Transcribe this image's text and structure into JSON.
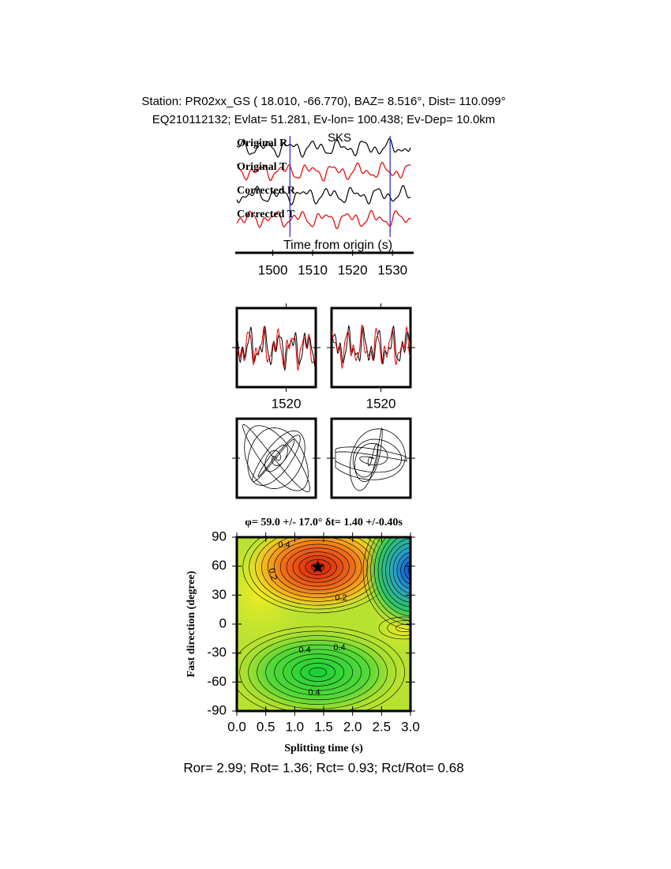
{
  "header": {
    "station_line": "Station: PR02xx_GS (  18.010,  -66.770), BAZ=    8.516°, Dist=  110.099°",
    "event_line": "EQ210112132; Evlat=  51.281, Ev-lon= 100.438; Ev-Dep= 10.0km"
  },
  "traces": {
    "labels": [
      "Original R",
      "Original T",
      "Corrected R",
      "Corrected T"
    ],
    "phase": "SKS",
    "xlabel": "Time from origin (s)",
    "xlim": [
      1490.6,
      1535.3
    ],
    "xticks": [
      1500,
      1510,
      1520,
      1530
    ],
    "window": [
      1504.3,
      1529.4
    ],
    "colors": {
      "radial": "#000000",
      "transverse": "#e00000",
      "window": "#2020c0",
      "phase": "#e00000"
    }
  },
  "window_panels": {
    "xticks": [
      1520
    ]
  },
  "grid_search": {
    "title": "φ= 59.0 +/- 17.0° δt= 1.40 +/-0.40s",
    "xlabel": "Splitting time (s)",
    "ylabel": "Fast direction (degree)",
    "xlim": [
      0,
      3
    ],
    "ylim": [
      -90,
      90
    ],
    "xticks": [
      {
        "value": 0,
        "label": "0.0"
      },
      0.5,
      {
        "value": 1,
        "label": "1.0"
      },
      1.5,
      {
        "value": 2,
        "label": "2.0"
      },
      2.5,
      {
        "value": 3,
        "label": "3.0"
      }
    ],
    "yticks": [
      90,
      60,
      30,
      0,
      -30,
      -60,
      -90
    ],
    "best": {
      "dt": 1.4,
      "phi": 59
    },
    "contour_labels": [
      0.2,
      0.2,
      0.4,
      0.4,
      0.4,
      0.4
    ]
  },
  "footer": "Ror= 2.99; Rot= 1.36; Rct= 0.93; Rct/Rot= 0.68"
}
